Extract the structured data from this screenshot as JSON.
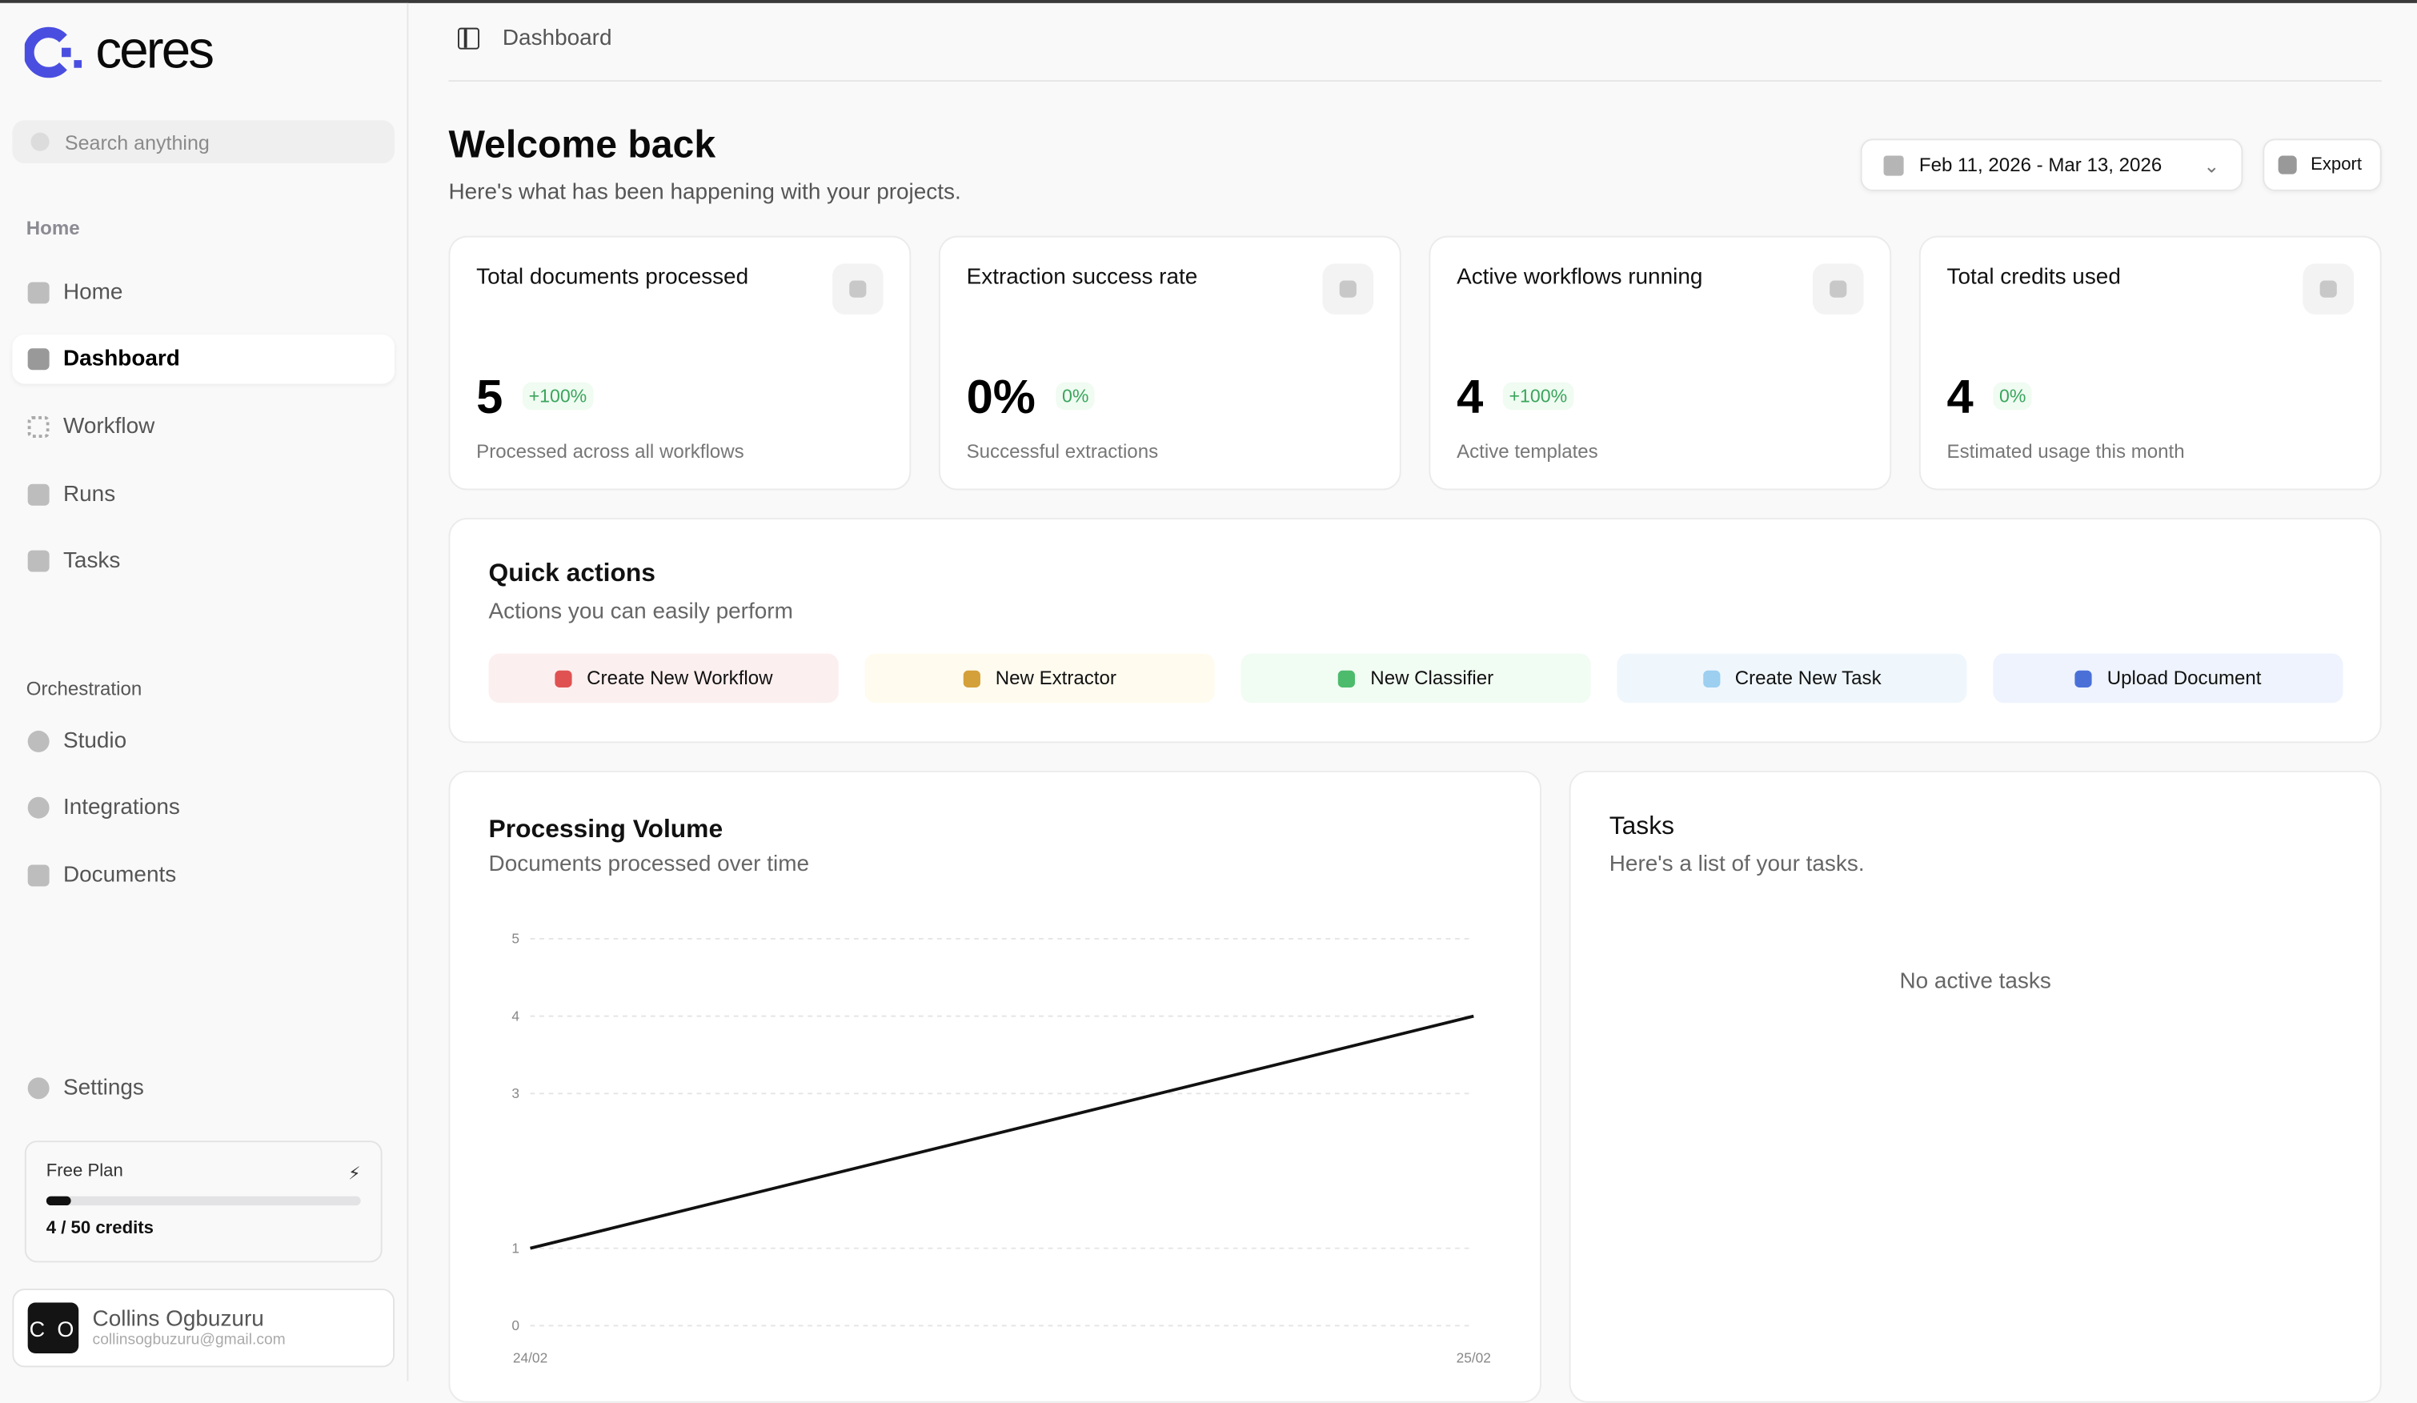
{
  "brand": {
    "name": "ceres",
    "accent": "#4a4ee0"
  },
  "sidebar": {
    "search_placeholder": "Search anything",
    "sections": [
      {
        "label": "Home",
        "items": [
          {
            "label": "Home",
            "icon": "home-icon"
          },
          {
            "label": "Dashboard",
            "icon": "dashboard-icon",
            "active": true
          },
          {
            "label": "Workflow",
            "icon": "workflow-icon"
          },
          {
            "label": "Runs",
            "icon": "runs-icon"
          },
          {
            "label": "Tasks",
            "icon": "tasks-icon"
          }
        ]
      },
      {
        "label": "Orchestration",
        "items": [
          {
            "label": "Studio",
            "icon": "studio-icon"
          },
          {
            "label": "Integrations",
            "icon": "integrations-icon"
          },
          {
            "label": "Documents",
            "icon": "documents-icon"
          }
        ]
      }
    ],
    "settings": "Settings",
    "plan": {
      "name": "Free Plan",
      "credits_text": "4 / 50 credits",
      "used": 4,
      "total": 50
    },
    "user": {
      "initials": "C O",
      "name": "Collins Ogbuzuru",
      "email": "collinsogbuzuru@gmail.com"
    }
  },
  "header": {
    "breadcrumb": "Dashboard"
  },
  "main": {
    "title": "Welcome back",
    "subtitle": "Here's what has been happening with your projects.",
    "date_range": "Feb 11, 2026 - Mar 13, 2026",
    "export_label": "Export",
    "stats": [
      {
        "title": "Total documents processed",
        "value": "5",
        "change": "+100%",
        "footer": "Processed across all workflows"
      },
      {
        "title": "Extraction success rate",
        "value": "0%",
        "change": "0%",
        "footer": "Successful extractions"
      },
      {
        "title": "Active workflows running",
        "value": "4",
        "change": "+100%",
        "footer": "Active templates"
      },
      {
        "title": "Total credits used",
        "value": "4",
        "change": "0%",
        "footer": "Estimated usage this month"
      }
    ],
    "quick_actions": {
      "title": "Quick actions",
      "subtitle": "Actions you can easily perform",
      "items": [
        {
          "label": "Create New Workflow",
          "bg": "#fcefef",
          "icon_color": "#e05252"
        },
        {
          "label": "New Extractor",
          "bg": "#fffbef",
          "icon_color": "#d4a03a"
        },
        {
          "label": "New Classifier",
          "bg": "#f1fcf3",
          "icon_color": "#4cbb6c"
        },
        {
          "label": "Create New Task",
          "bg": "#eff7fd",
          "icon_color": "#9ccff0"
        },
        {
          "label": "Upload Document",
          "bg": "#eef3fd",
          "icon_color": "#4a70d8"
        }
      ]
    },
    "volume": {
      "title": "Processing Volume",
      "subtitle": "Documents processed over time"
    },
    "tasks": {
      "title": "Tasks",
      "subtitle": "Here's a list of your tasks.",
      "empty": "No active tasks"
    }
  },
  "chart_data": {
    "type": "line",
    "title": "Processing Volume",
    "xlabel": "",
    "ylabel": "",
    "x": [
      "24/02",
      "25/02"
    ],
    "values": [
      1,
      4
    ],
    "yticks": [
      0,
      1,
      3,
      4,
      5
    ],
    "ylim": [
      0,
      5
    ],
    "grid": true,
    "line_color": "#111111"
  }
}
